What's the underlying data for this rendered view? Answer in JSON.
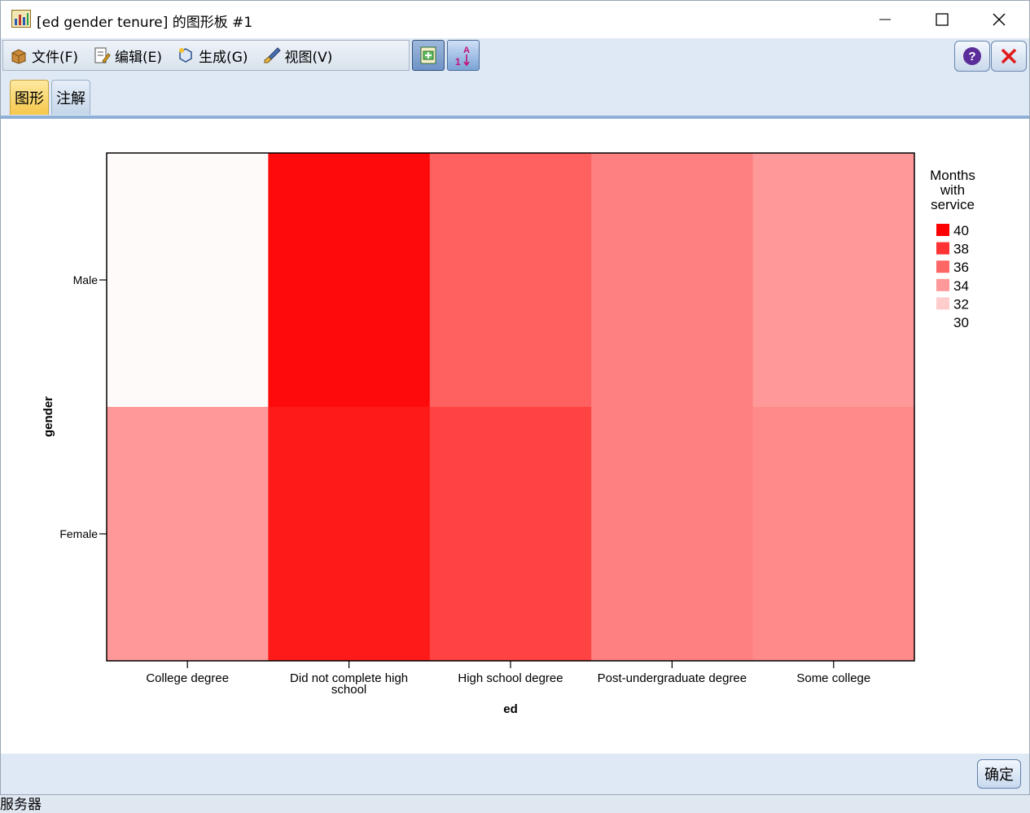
{
  "window": {
    "title": "[ed gender tenure] 的图形板 #1",
    "icon": "chart-board-icon"
  },
  "titlebar_buttons": {
    "minimize": "minimize-icon",
    "maximize": "maximize-icon",
    "close": "close-icon"
  },
  "menu": {
    "items": [
      {
        "label": "文件(F)",
        "icon": "file-box-icon"
      },
      {
        "label": "编辑(E)",
        "icon": "edit-document-icon"
      },
      {
        "label": "生成(G)",
        "icon": "generate-icon"
      },
      {
        "label": "视图(V)",
        "icon": "view-brush-icon"
      }
    ]
  },
  "toolbar": {
    "buttons": [
      {
        "icon": "edit-mode-icon"
      },
      {
        "icon": "sort-numeric-icon"
      }
    ],
    "help_icon": "help-icon",
    "close_icon": "close-red-icon"
  },
  "tabs": [
    {
      "label": "图形",
      "active": true
    },
    {
      "label": "注解",
      "active": false
    }
  ],
  "footer": {
    "ok_label": "确定"
  },
  "background_fragment": "服务器",
  "colors": {
    "accent": "#ff0000",
    "tab_active": "#f6c74b",
    "window_bg": "#dfe9f5"
  },
  "chart_data": {
    "type": "heatmap",
    "xlabel": "ed",
    "ylabel": "gender",
    "x_categories": [
      "College degree",
      "Did not complete high school",
      "High school degree",
      "Post-undergraduate degree",
      "Some college"
    ],
    "x_tick_lines": [
      [
        "College degree"
      ],
      [
        "Did not complete high",
        "school"
      ],
      [
        "High school degree"
      ],
      [
        "Post-undergraduate degree"
      ],
      [
        "Some college"
      ]
    ],
    "y_categories": [
      "Male",
      "Female"
    ],
    "values": [
      [
        30.2,
        39.6,
        36.2,
        35.0,
        34.0
      ],
      [
        34.0,
        39.0,
        37.4,
        35.0,
        34.6
      ]
    ],
    "color_scale": {
      "title_lines": [
        "Months",
        "with",
        "service"
      ],
      "min": 30,
      "max": 40,
      "low_color": "#ffffff",
      "high_color": "#ff0000",
      "legend_values": [
        40,
        38,
        36,
        34,
        32,
        30
      ]
    }
  }
}
